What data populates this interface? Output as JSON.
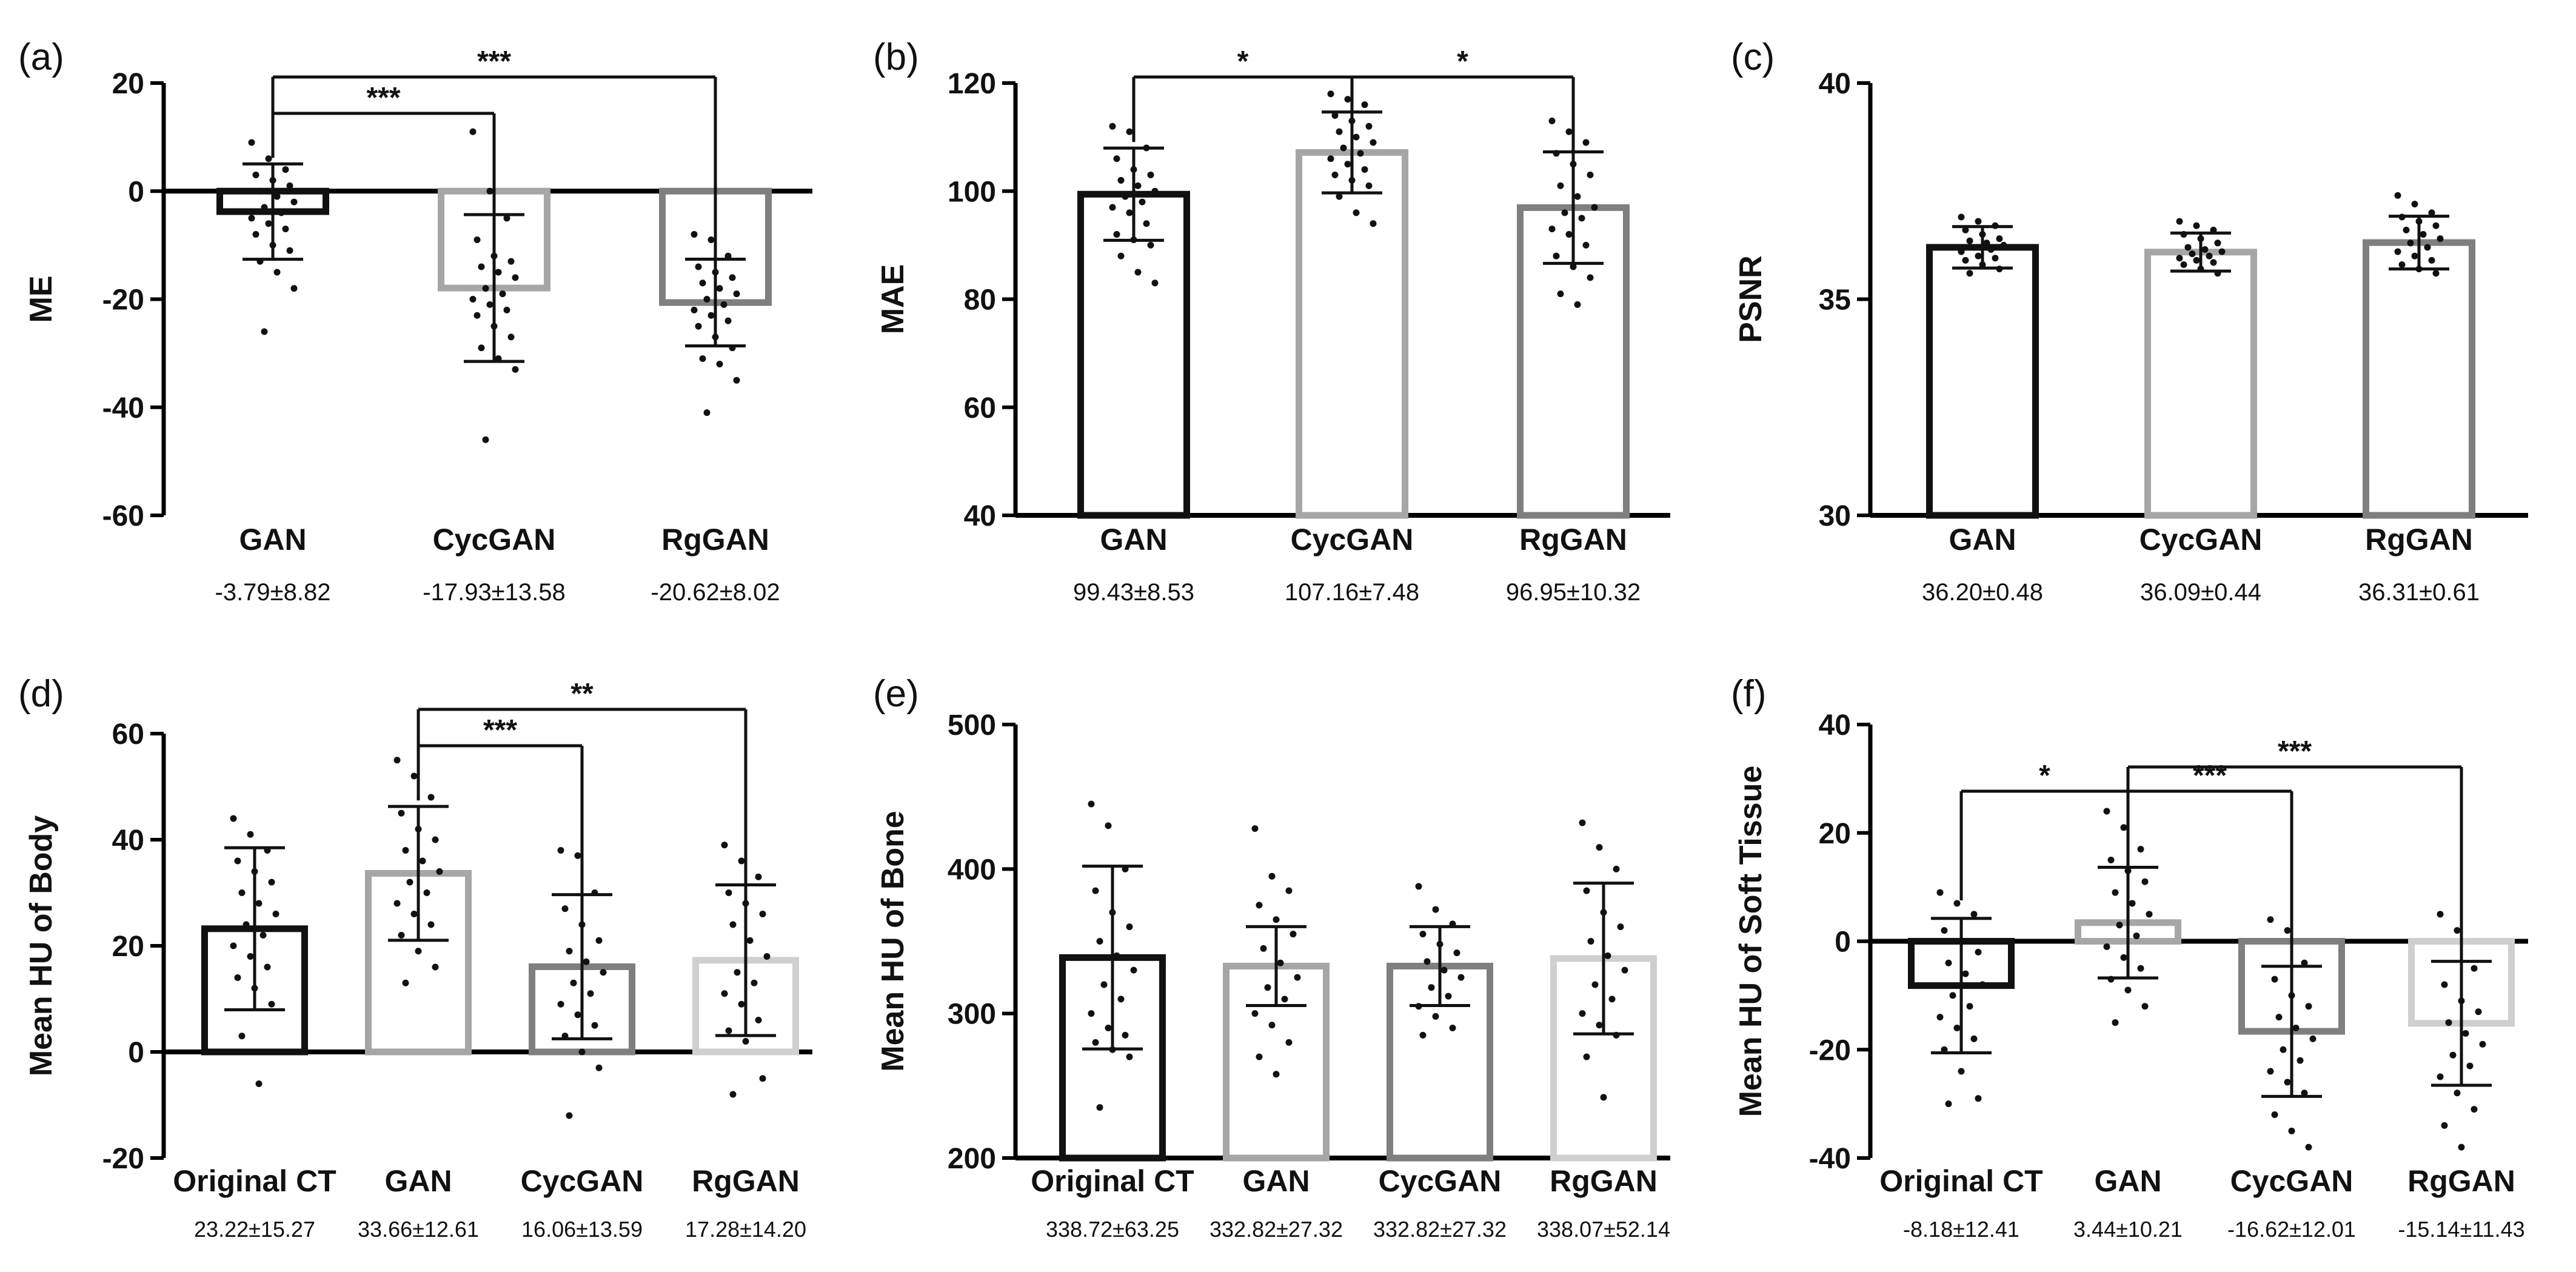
{
  "chart_data": [
    {
      "panel": "(a)",
      "type": "bar",
      "ylabel": "ME",
      "categories": [
        "GAN",
        "CycGAN",
        "RgGAN"
      ],
      "values": [
        -3.79,
        -17.93,
        -20.62
      ],
      "sd": [
        8.82,
        13.58,
        8.02
      ],
      "summary": [
        "-3.79±8.82",
        "-17.93±13.58",
        "-20.62±8.02"
      ],
      "bar_colors": [
        "#111111",
        "#a6a6a6",
        "#7f7f7f"
      ],
      "ylim": [
        -60,
        20
      ],
      "yticks": [
        20,
        0,
        -20,
        -40,
        -60
      ],
      "ytick_labels": [
        "20",
        "0",
        "-20",
        "-40",
        "-60"
      ],
      "points": [
        [
          9,
          6,
          4,
          3,
          2,
          1,
          0,
          -1,
          -2,
          -3,
          -4,
          -5,
          -6,
          -7,
          -8,
          -10,
          -11,
          -13,
          -15,
          -18,
          -26
        ],
        [
          11,
          0,
          -5,
          -9,
          -12,
          -13,
          -14,
          -15,
          -16,
          -18,
          -19,
          -20,
          -21,
          -22,
          -23,
          -25,
          -27,
          -29,
          -31,
          -33,
          -46
        ],
        [
          -8,
          -9,
          -12,
          -14,
          -15,
          -16,
          -17,
          -18,
          -19,
          -20,
          -21,
          -22,
          -23,
          -24,
          -25,
          -27,
          -29,
          -31,
          -32,
          -35,
          -41
        ]
      ],
      "significance": [
        {
          "from": 0,
          "to": 1,
          "label": "***",
          "level": 1
        },
        {
          "from": 0,
          "to": 2,
          "label": "***",
          "level": 2
        }
      ]
    },
    {
      "panel": "(b)",
      "type": "bar",
      "ylabel": "MAE",
      "categories": [
        "GAN",
        "CycGAN",
        "RgGAN"
      ],
      "values": [
        99.43,
        107.16,
        96.95
      ],
      "sd": [
        8.53,
        7.48,
        10.32
      ],
      "summary": [
        "99.43±8.53",
        "107.16±7.48",
        "96.95±10.32"
      ],
      "bar_colors": [
        "#111111",
        "#a6a6a6",
        "#7f7f7f"
      ],
      "ylim": [
        40,
        120
      ],
      "yticks": [
        40,
        60,
        80,
        100,
        120
      ],
      "ytick_labels": [
        "40",
        "60",
        "80",
        "100",
        "120"
      ],
      "points": [
        [
          112,
          111,
          108,
          106,
          104,
          103,
          102,
          101,
          100,
          99,
          98,
          97,
          96,
          94,
          92,
          91,
          90,
          88,
          85,
          83
        ],
        [
          118,
          117,
          116,
          114,
          113,
          112,
          111,
          110,
          109,
          108,
          107,
          106,
          105,
          104,
          103,
          102,
          101,
          99,
          96,
          94
        ],
        [
          113,
          111,
          109,
          107,
          105,
          103,
          101,
          99,
          97,
          96,
          95,
          93,
          92,
          90,
          88,
          86,
          84,
          81,
          79
        ]
      ],
      "significance": [
        {
          "from": 0,
          "to": 1,
          "label": "*",
          "level": 1
        },
        {
          "from": 1,
          "to": 2,
          "label": "*",
          "level": 1
        }
      ]
    },
    {
      "panel": "(c)",
      "type": "bar",
      "ylabel": "PSNR",
      "categories": [
        "GAN",
        "CycGAN",
        "RgGAN"
      ],
      "values": [
        36.2,
        36.09,
        36.31
      ],
      "sd": [
        0.48,
        0.44,
        0.61
      ],
      "summary": [
        "36.20±0.48",
        "36.09±0.44",
        "36.31±0.61"
      ],
      "bar_colors": [
        "#111111",
        "#a6a6a6",
        "#7f7f7f"
      ],
      "ylim": [
        30,
        40
      ],
      "yticks": [
        30,
        35,
        40
      ],
      "ytick_labels": [
        "30",
        "35",
        "40"
      ],
      "points": [
        [
          36.9,
          36.8,
          36.7,
          36.6,
          36.5,
          36.4,
          36.35,
          36.3,
          36.25,
          36.2,
          36.15,
          36.1,
          36.0,
          35.95,
          35.9,
          35.8,
          35.7,
          35.6
        ],
        [
          36.8,
          36.7,
          36.6,
          36.5,
          36.4,
          36.3,
          36.2,
          36.15,
          36.1,
          36.05,
          36.0,
          35.95,
          35.9,
          35.85,
          35.8,
          35.7,
          35.6
        ],
        [
          37.4,
          37.2,
          37.0,
          36.9,
          36.8,
          36.7,
          36.6,
          36.5,
          36.4,
          36.3,
          36.2,
          36.1,
          36.0,
          35.9,
          35.8,
          35.7,
          35.6
        ]
      ],
      "significance": []
    },
    {
      "panel": "(d)",
      "type": "bar",
      "ylabel": "Mean HU of Body",
      "categories": [
        "Original CT",
        "GAN",
        "CycGAN",
        "RgGAN"
      ],
      "values": [
        23.22,
        33.66,
        16.06,
        17.28
      ],
      "sd": [
        15.27,
        12.61,
        13.59,
        14.2
      ],
      "summary": [
        "23.22±15.27",
        "33.66±12.61",
        "16.06±13.59",
        "17.28±14.20"
      ],
      "bar_colors": [
        "#111111",
        "#a6a6a6",
        "#7f7f7f",
        "#cfcfcf"
      ],
      "ylim": [
        -20,
        60
      ],
      "yticks": [
        -20,
        0,
        20,
        40,
        60
      ],
      "ytick_labels": [
        "-20",
        "0",
        "20",
        "40",
        "60"
      ],
      "points": [
        [
          44,
          41,
          38,
          36,
          34,
          32,
          30,
          28,
          26,
          24,
          22,
          20,
          18,
          16,
          14,
          12,
          9,
          3,
          -6
        ],
        [
          55,
          52,
          48,
          45,
          42,
          40,
          38,
          36,
          34,
          32,
          30,
          28,
          26,
          24,
          22,
          19,
          16,
          13
        ],
        [
          38,
          37,
          30,
          27,
          24,
          21,
          19,
          17,
          15,
          13,
          11,
          9,
          7,
          5,
          3,
          0,
          -3,
          -12
        ],
        [
          39,
          36,
          33,
          30,
          28,
          26,
          24,
          21,
          18,
          15,
          13,
          11,
          9,
          6,
          4,
          2,
          -5,
          -8
        ]
      ],
      "significance": [
        {
          "from": 1,
          "to": 2,
          "label": "***",
          "level": 1
        },
        {
          "from": 1,
          "to": 3,
          "label": "**",
          "level": 2
        }
      ]
    },
    {
      "panel": "(e)",
      "type": "bar",
      "ylabel": "Mean HU of Bone",
      "categories": [
        "Original CT",
        "GAN",
        "CycGAN",
        "RgGAN"
      ],
      "values": [
        338.72,
        332.82,
        332.82,
        338.07
      ],
      "sd": [
        63.25,
        27.32,
        27.32,
        52.14
      ],
      "summary": [
        "338.72±63.25",
        "332.82±27.32",
        "332.82±27.32",
        "338.07±52.14"
      ],
      "bar_colors": [
        "#111111",
        "#a6a6a6",
        "#7f7f7f",
        "#cfcfcf"
      ],
      "ylim": [
        200,
        500
      ],
      "yticks": [
        200,
        300,
        400,
        500
      ],
      "ytick_labels": [
        "200",
        "300",
        "400",
        "500"
      ],
      "points": [
        [
          445,
          430,
          400,
          385,
          370,
          360,
          350,
          340,
          330,
          320,
          310,
          300,
          290,
          285,
          280,
          275,
          270,
          235
        ],
        [
          428,
          395,
          385,
          375,
          365,
          355,
          345,
          335,
          325,
          318,
          310,
          300,
          292,
          280,
          270,
          258
        ],
        [
          388,
          372,
          362,
          355,
          348,
          342,
          336,
          330,
          325,
          318,
          312,
          305,
          298,
          290,
          285
        ],
        [
          432,
          415,
          400,
          385,
          370,
          360,
          350,
          340,
          330,
          320,
          310,
          300,
          292,
          285,
          270,
          242
        ]
      ],
      "significance": []
    },
    {
      "panel": "(f)",
      "type": "bar",
      "ylabel": "Mean HU of Soft Tissue",
      "categories": [
        "Original CT",
        "GAN",
        "CycGAN",
        "RgGAN"
      ],
      "values": [
        -8.18,
        3.44,
        -16.62,
        -15.14
      ],
      "sd": [
        12.41,
        10.21,
        12.01,
        11.43
      ],
      "summary": [
        "-8.18±12.41",
        "3.44±10.21",
        "-16.62±12.01",
        "-15.14±11.43"
      ],
      "bar_colors": [
        "#111111",
        "#a6a6a6",
        "#7f7f7f",
        "#cfcfcf"
      ],
      "ylim": [
        -40,
        40
      ],
      "yticks": [
        -40,
        -20,
        0,
        20,
        40
      ],
      "ytick_labels": [
        "-40",
        "-20",
        "0",
        "20",
        "40"
      ],
      "points": [
        [
          9,
          7,
          5,
          2,
          0,
          -2,
          -4,
          -6,
          -8,
          -10,
          -12,
          -14,
          -16,
          -18,
          -20,
          -24,
          -29,
          -30
        ],
        [
          24,
          21,
          17,
          15,
          13,
          11,
          9,
          7,
          5,
          3,
          1,
          -1,
          -3,
          -5,
          -7,
          -9,
          -12,
          -15
        ],
        [
          4,
          2,
          -4,
          -7,
          -10,
          -12,
          -14,
          -16,
          -18,
          -20,
          -22,
          -24,
          -26,
          -28,
          -32,
          -35,
          -38
        ],
        [
          5,
          2,
          -5,
          -8,
          -11,
          -13,
          -15,
          -17,
          -19,
          -21,
          -23,
          -25,
          -28,
          -31,
          -34,
          -38
        ]
      ],
      "significance": [
        {
          "from": 0,
          "to": 1,
          "label": "*",
          "level": 1
        },
        {
          "from": 1,
          "to": 2,
          "label": "***",
          "level": 1
        },
        {
          "from": 1,
          "to": 3,
          "label": "***",
          "level": 2
        }
      ]
    }
  ]
}
